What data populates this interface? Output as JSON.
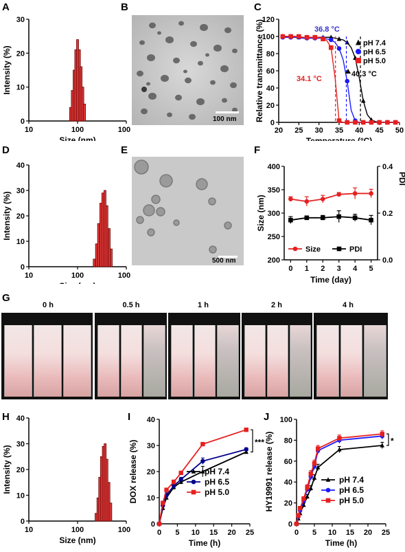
{
  "panel_labels": {
    "A": "A",
    "B": "B",
    "C": "C",
    "D": "D",
    "E": "E",
    "F": "F",
    "G": "G",
    "H": "H",
    "I": "I",
    "J": "J"
  },
  "scale_bars": {
    "B": "100 nm",
    "E": "500 nm"
  },
  "vial_times": [
    "0 h",
    "0.5 h",
    "1 h",
    "2 h",
    "4 h"
  ],
  "chart_data": [
    {
      "id": "A",
      "type": "bar",
      "xlabel": "Size (nm)",
      "ylabel": "Intensity (%)",
      "xscale": "log",
      "xlim": [
        10,
        1000
      ],
      "ylim": [
        0,
        30
      ],
      "xticks": [
        "10",
        "100",
        "1000"
      ],
      "yticks": [
        "0",
        "10",
        "20",
        "30"
      ],
      "bins": [
        {
          "x": 72,
          "y": 4
        },
        {
          "x": 78,
          "y": 9
        },
        {
          "x": 85,
          "y": 15
        },
        {
          "x": 92,
          "y": 21
        },
        {
          "x": 100,
          "y": 24
        },
        {
          "x": 109,
          "y": 21
        },
        {
          "x": 118,
          "y": 16
        },
        {
          "x": 128,
          "y": 10
        },
        {
          "x": 139,
          "y": 5
        }
      ]
    },
    {
      "id": "C",
      "type": "scatter",
      "xlabel": "Temperature (°C)",
      "ylabel": "Relative transmittance (%)",
      "xlim": [
        20,
        50
      ],
      "ylim": [
        0,
        120
      ],
      "xticks": [
        "20",
        "25",
        "30",
        "35",
        "40",
        "45",
        "50"
      ],
      "yticks": [
        "0",
        "20",
        "40",
        "60",
        "80",
        "100",
        "120"
      ],
      "legend_position": "top-right",
      "annotations": [
        {
          "text": "36.8 °C",
          "color": "#3333cc"
        },
        {
          "text": "34.1 °C",
          "color": "#e02020"
        },
        {
          "text": "40.3 °C",
          "color": "#000000"
        }
      ],
      "series": [
        {
          "name": "pH 7.4",
          "color": "#000000",
          "marker": "triangle",
          "midpoint": 40.3,
          "x": [
            21,
            22,
            23,
            24,
            25,
            26,
            27,
            28,
            29,
            30,
            31,
            32,
            33,
            34,
            35,
            36,
            37,
            38,
            39,
            40,
            41,
            42,
            43,
            44,
            45,
            46,
            47,
            48,
            49,
            50
          ],
          "y": [
            100,
            100,
            100,
            100,
            99,
            99,
            99,
            99,
            99,
            99,
            99,
            99,
            99,
            98,
            97,
            96,
            93,
            87,
            75,
            52,
            25,
            9,
            3,
            1,
            0,
            0,
            0,
            0,
            0,
            0
          ]
        },
        {
          "name": "pH 6.5",
          "color": "#1a1aff",
          "marker": "circle",
          "midpoint": 36.8,
          "x": [
            21,
            22,
            23,
            24,
            25,
            26,
            27,
            28,
            29,
            30,
            31,
            32,
            33,
            34,
            35,
            36,
            37,
            38,
            39,
            40,
            41,
            42,
            43,
            44,
            45,
            46,
            47,
            48,
            49,
            50
          ],
          "y": [
            99,
            99,
            99,
            99,
            99,
            98,
            98,
            98,
            98,
            98,
            98,
            97,
            96,
            93,
            86,
            73,
            48,
            14,
            2,
            0,
            0,
            0,
            0,
            0,
            0,
            0,
            0,
            0,
            0,
            0
          ]
        },
        {
          "name": "pH 5.0",
          "color": "#e62020",
          "marker": "square",
          "midpoint": 34.1,
          "x": [
            21,
            22,
            23,
            24,
            25,
            26,
            27,
            28,
            29,
            30,
            31,
            32,
            33,
            34,
            35,
            36,
            37,
            38,
            39,
            40,
            41,
            42,
            43,
            44,
            45,
            46,
            47,
            48,
            49,
            50
          ],
          "y": [
            100,
            100,
            100,
            100,
            100,
            99,
            99,
            99,
            99,
            99,
            97,
            95,
            87,
            52,
            2,
            0,
            0,
            0,
            0,
            0,
            0,
            0,
            0,
            0,
            0,
            0,
            0,
            0,
            0,
            0
          ]
        }
      ]
    },
    {
      "id": "D",
      "type": "bar",
      "xlabel": "Size (nm)",
      "ylabel": "Intensity (%)",
      "xscale": "log",
      "xlim": [
        10,
        1000
      ],
      "ylim": [
        0,
        40
      ],
      "xticks": [
        "10",
        "100",
        "1000"
      ],
      "yticks": [
        "0",
        "10",
        "20",
        "30",
        "40"
      ],
      "bins": [
        {
          "x": 220,
          "y": 3
        },
        {
          "x": 245,
          "y": 9
        },
        {
          "x": 270,
          "y": 17
        },
        {
          "x": 300,
          "y": 25
        },
        {
          "x": 330,
          "y": 29
        },
        {
          "x": 365,
          "y": 30
        },
        {
          "x": 400,
          "y": 24
        },
        {
          "x": 445,
          "y": 15
        },
        {
          "x": 490,
          "y": 7
        }
      ]
    },
    {
      "id": "F",
      "type": "line",
      "xlabel": "Time (day)",
      "ylabel": "Size (nm)",
      "y2label": "PDI",
      "xlim": [
        -0.4,
        5.4
      ],
      "ylim": [
        200,
        400
      ],
      "y2lim": [
        0.0,
        0.4
      ],
      "xticks": [
        "0",
        "1",
        "2",
        "3",
        "4",
        "5"
      ],
      "yticks": [
        "200",
        "250",
        "300",
        "350",
        "400"
      ],
      "y2ticks": [
        "0.0",
        "0.2",
        "0.4"
      ],
      "legend_position": "bottom",
      "series": [
        {
          "name": "Size",
          "color": "#e62020",
          "marker": "circle",
          "axis": "left",
          "x": [
            0,
            1,
            2,
            3,
            4,
            5
          ],
          "y": [
            330,
            325,
            330,
            340,
            342,
            342
          ],
          "err": [
            5,
            10,
            8,
            4,
            12,
            9
          ]
        },
        {
          "name": "PDI",
          "color": "#000000",
          "marker": "square",
          "axis": "right",
          "x": [
            0,
            1,
            2,
            3,
            4,
            5
          ],
          "y": [
            0.17,
            0.18,
            0.18,
            0.185,
            0.18,
            0.17
          ],
          "err": [
            0.015,
            0.008,
            0.01,
            0.025,
            0.015,
            0.02
          ]
        }
      ]
    },
    {
      "id": "H",
      "type": "bar",
      "xlabel": "Size (nm)",
      "ylabel": "Intensity (%)",
      "xscale": "log",
      "xlim": [
        10,
        1000
      ],
      "ylim": [
        0,
        40
      ],
      "xticks": [
        "10",
        "100",
        "1000"
      ],
      "yticks": [
        "0",
        "10",
        "20",
        "30",
        "40"
      ],
      "bins": [
        {
          "x": 240,
          "y": 3
        },
        {
          "x": 262,
          "y": 9
        },
        {
          "x": 285,
          "y": 17
        },
        {
          "x": 310,
          "y": 25
        },
        {
          "x": 338,
          "y": 29
        },
        {
          "x": 368,
          "y": 30
        },
        {
          "x": 400,
          "y": 24
        },
        {
          "x": 440,
          "y": 15
        },
        {
          "x": 480,
          "y": 7
        }
      ]
    },
    {
      "id": "I",
      "type": "line",
      "xlabel": "Time (h)",
      "ylabel": "DOX release (%)",
      "xlim": [
        0,
        25
      ],
      "ylim": [
        0,
        40
      ],
      "xticks": [
        "0",
        "5",
        "10",
        "15",
        "20",
        "25"
      ],
      "yticks": [
        "0",
        "10",
        "20",
        "30",
        "40"
      ],
      "legend_position": "bottom-right",
      "significance": "***",
      "series": [
        {
          "name": "pH 7.4",
          "color": "#000000",
          "marker": "triangle",
          "x": [
            0,
            1,
            2,
            4,
            6,
            12,
            24
          ],
          "y": [
            0,
            6,
            10,
            14,
            16,
            20,
            27.5
          ],
          "err": [
            0,
            0.8,
            0.8,
            0.9,
            0.8,
            2.0,
            0.6
          ]
        },
        {
          "name": "pH 6.5",
          "color": "#00008b",
          "marker": "circle",
          "x": [
            0,
            1,
            2,
            4,
            6,
            12,
            24
          ],
          "y": [
            0,
            7,
            11,
            14.5,
            17,
            24,
            28.5
          ],
          "err": [
            0,
            0.8,
            0.9,
            0.8,
            0.8,
            1.2,
            0.6
          ]
        },
        {
          "name": "pH 5.0",
          "color": "#e62020",
          "marker": "square",
          "x": [
            0,
            1,
            2,
            4,
            6,
            12,
            24
          ],
          "y": [
            0,
            8,
            13,
            16,
            19.5,
            30.5,
            36
          ],
          "err": [
            0,
            0.6,
            0.6,
            0.8,
            0.6,
            0.5,
            0.5
          ]
        }
      ]
    },
    {
      "id": "J",
      "type": "line",
      "xlabel": "Time (h)",
      "ylabel": "HY19991 release (%)",
      "xlim": [
        0,
        25
      ],
      "ylim": [
        0,
        100
      ],
      "xticks": [
        "0",
        "5",
        "10",
        "15",
        "20",
        "25"
      ],
      "yticks": [
        "0",
        "20",
        "40",
        "60",
        "80",
        "100"
      ],
      "legend_position": "bottom-right",
      "significance": "*",
      "series": [
        {
          "name": "pH 7.4",
          "color": "#000000",
          "marker": "triangle",
          "x": [
            0,
            0.5,
            1,
            2,
            3,
            4,
            5,
            6,
            12,
            24
          ],
          "y": [
            0,
            5,
            10,
            18,
            26,
            34,
            44,
            54,
            71,
            75
          ],
          "err": [
            0,
            1,
            1.5,
            2,
            2,
            2.5,
            3,
            3,
            3,
            3
          ]
        },
        {
          "name": "pH 6.5",
          "color": "#1a1aff",
          "marker": "circle",
          "x": [
            0,
            0.5,
            1,
            2,
            3,
            4,
            5,
            6,
            12,
            24
          ],
          "y": [
            0,
            7,
            13,
            22,
            33,
            45,
            55,
            70,
            80,
            84
          ],
          "err": [
            0,
            1,
            1.5,
            2,
            2.5,
            3,
            3,
            3,
            3,
            3
          ]
        },
        {
          "name": "pH 5.0",
          "color": "#e62020",
          "marker": "square",
          "x": [
            0,
            0.5,
            1,
            2,
            3,
            4,
            5,
            6,
            12,
            24
          ],
          "y": [
            0,
            8,
            15,
            24,
            35,
            48,
            58,
            72,
            82,
            86
          ],
          "err": [
            0,
            1,
            1.5,
            2,
            2.5,
            3,
            3,
            3,
            3,
            3
          ]
        }
      ]
    }
  ]
}
